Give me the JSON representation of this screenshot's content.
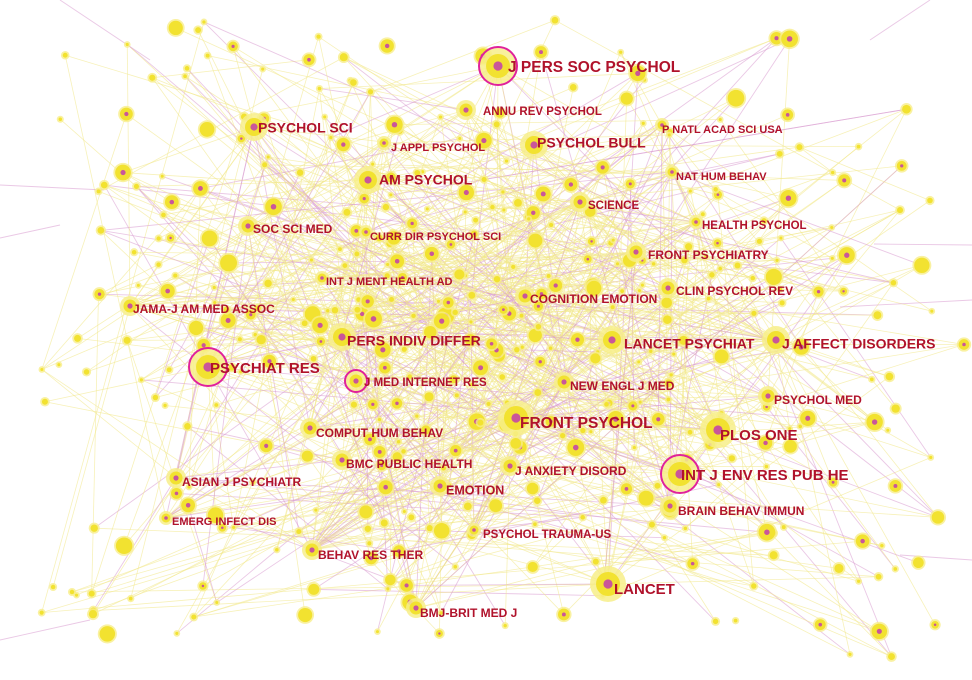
{
  "colors": {
    "node_fill": "#f2e230",
    "node_halo": "#f7ee8a",
    "node_core": "#c9569a",
    "burst_ring": "#e0229a",
    "edge_yellow": "#f1e88a",
    "edge_pink": "#d99ad0",
    "label": "#b0122b"
  },
  "nodes": [
    {
      "label": "J PERS SOC PSYCHOL",
      "size": "xl",
      "burst": true
    },
    {
      "label": "ANNU REV PSYCHOL",
      "size": "m",
      "burst": false
    },
    {
      "label": "PSYCHOL SCI",
      "size": "l",
      "burst": false
    },
    {
      "label": "J APPL PSYCHOL",
      "size": "s",
      "burst": false
    },
    {
      "label": "PSYCHOL BULL",
      "size": "l",
      "burst": false
    },
    {
      "label": "P NATL ACAD SCI USA",
      "size": "s",
      "burst": false
    },
    {
      "label": "AM PSYCHOL",
      "size": "l",
      "burst": false
    },
    {
      "label": "NAT HUM BEHAV",
      "size": "s",
      "burst": false
    },
    {
      "label": "SCIENCE",
      "size": "m",
      "burst": false
    },
    {
      "label": "SOC SCI MED",
      "size": "m",
      "burst": false
    },
    {
      "label": "CURR DIR PSYCHOL SCI",
      "size": "s",
      "burst": false
    },
    {
      "label": "HEALTH PSYCHOL",
      "size": "s",
      "burst": false
    },
    {
      "label": "FRONT PSYCHIATRY",
      "size": "m",
      "burst": false
    },
    {
      "label": "INT J MENT HEALTH AD",
      "size": "s",
      "burst": false
    },
    {
      "label": "COGNITION EMOTION",
      "size": "m",
      "burst": false
    },
    {
      "label": "CLIN PSYCHOL REV",
      "size": "m",
      "burst": false
    },
    {
      "label": "JAMA-J AM MED ASSOC",
      "size": "m",
      "burst": false
    },
    {
      "label": "PERS INDIV DIFFER",
      "size": "l",
      "burst": false
    },
    {
      "label": "LANCET PSYCHIAT",
      "size": "l",
      "burst": false
    },
    {
      "label": "J AFFECT DISORDERS",
      "size": "l",
      "burst": false
    },
    {
      "label": "PSYCHIAT RES",
      "size": "xl",
      "burst": true
    },
    {
      "label": "J MED INTERNET RES",
      "size": "m",
      "burst": true
    },
    {
      "label": "NEW ENGL J MED",
      "size": "m",
      "burst": false
    },
    {
      "label": "PSYCHOL MED",
      "size": "m",
      "burst": false
    },
    {
      "label": "FRONT PSYCHOL",
      "size": "xl",
      "burst": false
    },
    {
      "label": "PLOS ONE",
      "size": "xl",
      "burst": false
    },
    {
      "label": "COMPUT HUM BEHAV",
      "size": "m",
      "burst": false
    },
    {
      "label": "BMC PUBLIC HEALTH",
      "size": "m",
      "burst": false
    },
    {
      "label": "J ANXIETY DISORD",
      "size": "m",
      "burst": false
    },
    {
      "label": "INT J ENV RES PUB HE",
      "size": "xl",
      "burst": true
    },
    {
      "label": "ASIAN J PSYCHIATR",
      "size": "m",
      "burst": false
    },
    {
      "label": "EMOTION",
      "size": "m",
      "burst": false
    },
    {
      "label": "BRAIN BEHAV IMMUN",
      "size": "m",
      "burst": false
    },
    {
      "label": "EMERG INFECT DIS",
      "size": "s",
      "burst": false
    },
    {
      "label": "PSYCHOL TRAUMA-US",
      "size": "s",
      "burst": false
    },
    {
      "label": "BEHAV RES THER",
      "size": "m",
      "burst": false
    },
    {
      "label": "LANCET",
      "size": "xl",
      "burst": false
    },
    {
      "label": "BMJ-BRIT MED J",
      "size": "m",
      "burst": false
    }
  ]
}
